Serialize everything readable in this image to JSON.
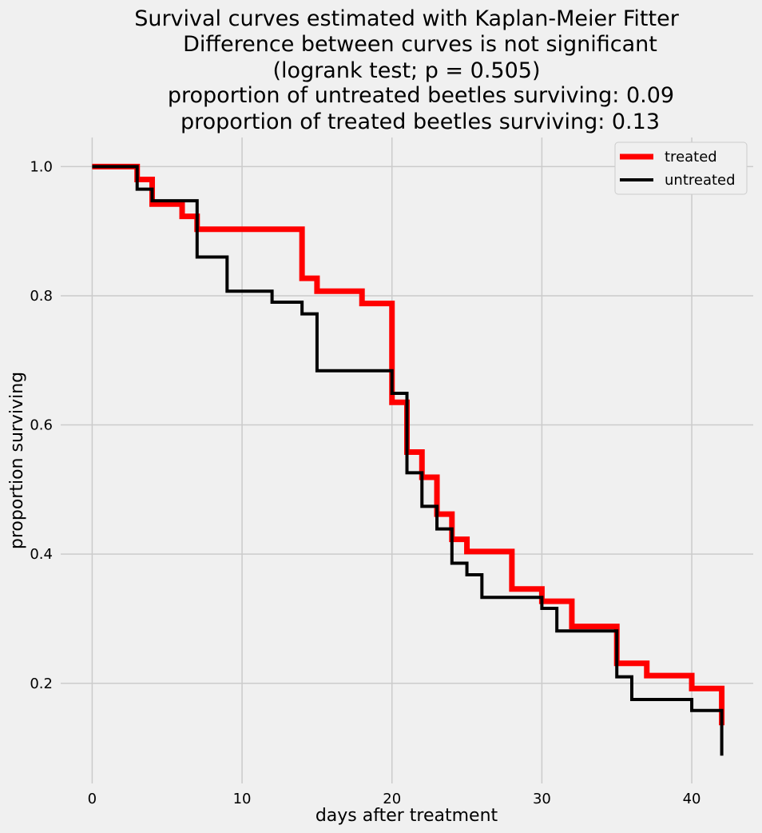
{
  "chart_data": {
    "type": "line",
    "step": true,
    "title_lines": [
      "Survival curves estimated with Kaplan-Meier Fitter",
      "Difference between curves is not significant",
      "(logrank test; p = 0.505)",
      "proportion of untreated beetles surviving: 0.09",
      "proportion of treated beetles surviving: 0.13"
    ],
    "xlabel": "days after treatment",
    "ylabel": "proportion surviving",
    "xlim": [
      -2.1,
      44.1
    ],
    "ylim": [
      0.045,
      1.045
    ],
    "xticks": [
      0,
      10,
      20,
      30,
      40
    ],
    "yticks": [
      0.2,
      0.4,
      0.6,
      0.8,
      1.0
    ],
    "xtick_labels": [
      "0",
      "10",
      "20",
      "30",
      "40"
    ],
    "ytick_labels": [
      "0.2",
      "0.4",
      "0.6",
      "0.8",
      "1.0"
    ],
    "grid": true,
    "legend_position": "top-right",
    "series": [
      {
        "name": "treated",
        "color": "#ff0000",
        "points": [
          [
            0,
            1.0
          ],
          [
            3,
            0.98
          ],
          [
            4,
            0.942
          ],
          [
            6,
            0.923
          ],
          [
            7,
            0.903
          ],
          [
            14,
            0.827
          ],
          [
            15,
            0.807
          ],
          [
            18,
            0.788
          ],
          [
            20,
            0.635
          ],
          [
            21,
            0.558
          ],
          [
            22,
            0.519
          ],
          [
            23,
            0.462
          ],
          [
            24,
            0.423
          ],
          [
            25,
            0.404
          ],
          [
            28,
            0.346
          ],
          [
            30,
            0.327
          ],
          [
            32,
            0.288
          ],
          [
            35,
            0.231
          ],
          [
            37,
            0.212
          ],
          [
            40,
            0.192
          ],
          [
            42,
            0.135
          ]
        ]
      },
      {
        "name": "untreated",
        "color": "#000000",
        "points": [
          [
            0,
            1.0
          ],
          [
            3,
            0.965
          ],
          [
            4,
            0.947
          ],
          [
            7,
            0.86
          ],
          [
            9,
            0.807
          ],
          [
            12,
            0.79
          ],
          [
            14,
            0.772
          ],
          [
            15,
            0.684
          ],
          [
            20,
            0.649
          ],
          [
            21,
            0.526
          ],
          [
            22,
            0.474
          ],
          [
            23,
            0.439
          ],
          [
            24,
            0.386
          ],
          [
            25,
            0.368
          ],
          [
            26,
            0.333
          ],
          [
            30,
            0.316
          ],
          [
            31,
            0.281
          ],
          [
            35,
            0.21
          ],
          [
            36,
            0.175
          ],
          [
            40,
            0.158
          ],
          [
            42,
            0.088
          ]
        ]
      }
    ]
  }
}
